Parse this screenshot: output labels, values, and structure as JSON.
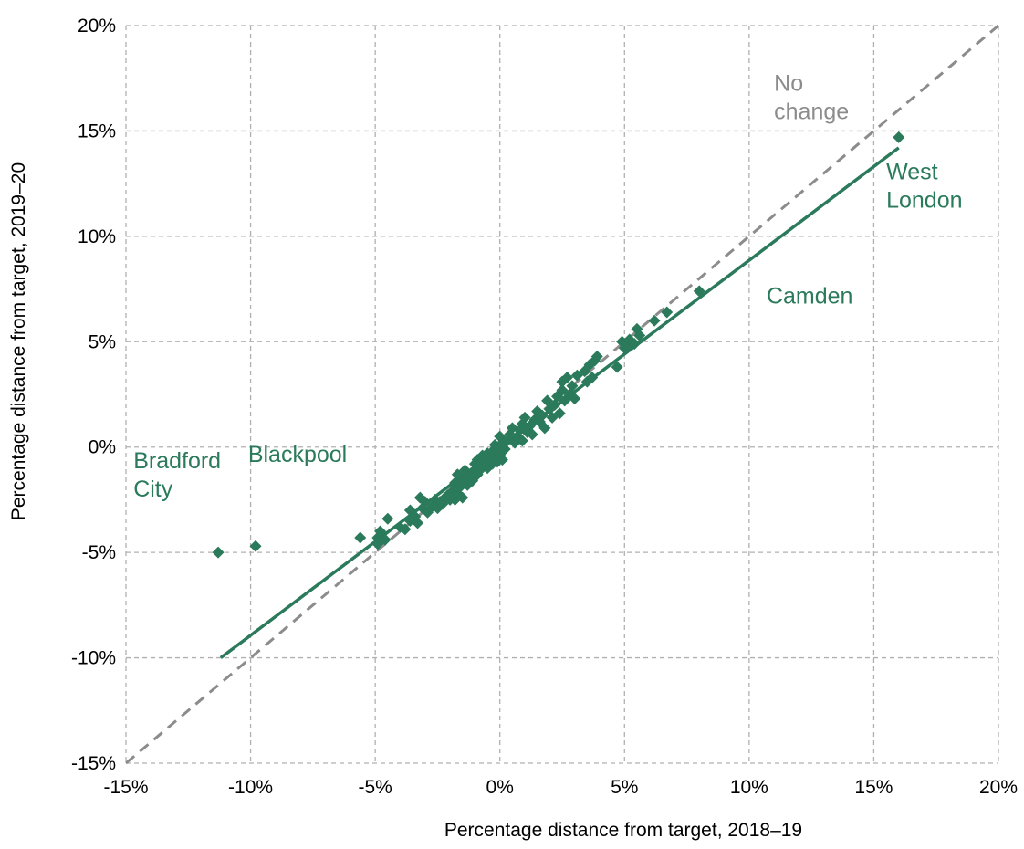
{
  "chart_data": {
    "type": "scatter",
    "xlabel": "Percentage distance from target, 2018–19",
    "ylabel": "Percentage distance from target, 2019–20",
    "xlim": [
      -15,
      20
    ],
    "ylim": [
      -15,
      20
    ],
    "grid": true,
    "x_tick_values": [
      -15,
      -10,
      -5,
      0,
      5,
      10,
      15,
      20
    ],
    "x_tick_labels": [
      "-15%",
      "-10%",
      "-5%",
      "0%",
      "5%",
      "10%",
      "15%",
      "20%"
    ],
    "y_tick_values": [
      -15,
      -10,
      -5,
      0,
      5,
      10,
      15,
      20
    ],
    "y_tick_labels": [
      "-15%",
      "-10%",
      "-5%",
      "0%",
      "5%",
      "10%",
      "15%",
      "20%"
    ],
    "colors": {
      "points": "#2a7a5b",
      "trend": "#2a7a5b",
      "no_change": "#8c8c8c",
      "grid": "#b0b0b0"
    },
    "points": [
      [
        -11.3,
        -5.0
      ],
      [
        -9.8,
        -4.7
      ],
      [
        16.0,
        14.7
      ],
      [
        8.0,
        7.4
      ],
      [
        -5.6,
        -4.3
      ],
      [
        -4.9,
        -4.3
      ],
      [
        -4.9,
        -4.6
      ],
      [
        -4.6,
        -4.4
      ],
      [
        -4.8,
        -4.0
      ],
      [
        -4.5,
        -3.4
      ],
      [
        -4.0,
        -3.8
      ],
      [
        -3.8,
        -3.9
      ],
      [
        -3.6,
        -3.5
      ],
      [
        -3.6,
        -3.0
      ],
      [
        -3.4,
        -3.3
      ],
      [
        -3.3,
        -3.6
      ],
      [
        -3.2,
        -2.4
      ],
      [
        -3.1,
        -2.9
      ],
      [
        -3.0,
        -2.6
      ],
      [
        -2.9,
        -3.1
      ],
      [
        -2.7,
        -2.8
      ],
      [
        -2.6,
        -2.5
      ],
      [
        -2.5,
        -2.9
      ],
      [
        -2.4,
        -2.6
      ],
      [
        -2.3,
        -2.7
      ],
      [
        -2.2,
        -2.4
      ],
      [
        -2.1,
        -2.3
      ],
      [
        -2.0,
        -2.5
      ],
      [
        -1.9,
        -2.1
      ],
      [
        -1.8,
        -1.7
      ],
      [
        -1.8,
        -2.5
      ],
      [
        -1.7,
        -2.2
      ],
      [
        -1.7,
        -1.3
      ],
      [
        -1.6,
        -1.9
      ],
      [
        -1.5,
        -1.6
      ],
      [
        -1.5,
        -2.4
      ],
      [
        -1.4,
        -1.1
      ],
      [
        -1.3,
        -1.8
      ],
      [
        -1.3,
        -1.5
      ],
      [
        -1.2,
        -1.4
      ],
      [
        -1.1,
        -1.6
      ],
      [
        -1.0,
        -1.2
      ],
      [
        -1.0,
        -0.8
      ],
      [
        -0.9,
        -0.6
      ],
      [
        -0.9,
        -1.3
      ],
      [
        -0.8,
        -1.1
      ],
      [
        -0.7,
        -0.4
      ],
      [
        -0.7,
        -0.9
      ],
      [
        -0.6,
        -0.7
      ],
      [
        -0.5,
        -0.3
      ],
      [
        -0.5,
        -1.0
      ],
      [
        -0.4,
        -0.6
      ],
      [
        -0.3,
        -0.8
      ],
      [
        -0.3,
        -0.2
      ],
      [
        -0.2,
        -0.5
      ],
      [
        -0.2,
        0.1
      ],
      [
        -0.1,
        -0.7
      ],
      [
        -0.1,
        -0.2
      ],
      [
        0.0,
        0.5
      ],
      [
        0.0,
        -0.4
      ],
      [
        0.1,
        0.2
      ],
      [
        0.1,
        -0.6
      ],
      [
        0.2,
        -0.1
      ],
      [
        0.3,
        0.3
      ],
      [
        0.4,
        0.6
      ],
      [
        0.5,
        0.9
      ],
      [
        0.6,
        0.2
      ],
      [
        0.7,
        0.5
      ],
      [
        0.8,
        0.8
      ],
      [
        0.9,
        1.1
      ],
      [
        0.9,
        0.3
      ],
      [
        1.0,
        1.4
      ],
      [
        1.1,
        0.7
      ],
      [
        1.2,
        1.0
      ],
      [
        1.3,
        0.6
      ],
      [
        1.4,
        1.3
      ],
      [
        1.5,
        1.7
      ],
      [
        1.6,
        1.2
      ],
      [
        1.7,
        1.5
      ],
      [
        1.8,
        0.9
      ],
      [
        1.9,
        2.2
      ],
      [
        2.0,
        1.8
      ],
      [
        2.1,
        1.4
      ],
      [
        2.2,
        2.0
      ],
      [
        2.3,
        2.4
      ],
      [
        2.4,
        1.6
      ],
      [
        2.5,
        2.7
      ],
      [
        2.5,
        3.1
      ],
      [
        2.6,
        2.2
      ],
      [
        2.7,
        3.3
      ],
      [
        2.8,
        2.5
      ],
      [
        2.9,
        2.9
      ],
      [
        3.0,
        2.3
      ],
      [
        3.1,
        3.4
      ],
      [
        3.4,
        3.6
      ],
      [
        3.5,
        3.1
      ],
      [
        3.6,
        3.9
      ],
      [
        3.7,
        3.3
      ],
      [
        3.8,
        4.1
      ],
      [
        3.9,
        4.3
      ],
      [
        4.7,
        3.8
      ],
      [
        4.9,
        5.0
      ],
      [
        5.0,
        4.7
      ],
      [
        5.1,
        4.8
      ],
      [
        5.2,
        5.1
      ],
      [
        5.4,
        4.9
      ],
      [
        5.5,
        5.6
      ],
      [
        5.6,
        5.3
      ],
      [
        6.2,
        6.0
      ],
      [
        6.7,
        6.4
      ]
    ],
    "trendline": {
      "x": [
        -11.2,
        16.0
      ],
      "y": [
        -10.0,
        14.2
      ]
    },
    "reference_line": {
      "label": "No change",
      "x": [
        -15,
        20
      ],
      "y": [
        -15,
        20
      ]
    },
    "annotations": [
      {
        "text": "No change",
        "lines": [
          "No",
          "change"
        ],
        "x": 11,
        "y": 16.9,
        "anchor": "start",
        "color": "#8c8c8c"
      },
      {
        "text": "West London",
        "lines": [
          "West",
          "London"
        ],
        "x": 15.5,
        "y": 12.7,
        "anchor": "start",
        "color": "#2a7a5b"
      },
      {
        "text": "Camden",
        "lines": [
          "Camden"
        ],
        "x": 10.7,
        "y": 6.8,
        "anchor": "start",
        "color": "#2a7a5b"
      },
      {
        "text": "Bradford City",
        "lines": [
          "Bradford",
          "City"
        ],
        "x": -14.7,
        "y": -1.0,
        "anchor": "start",
        "color": "#2a7a5b"
      },
      {
        "text": "Blackpool",
        "lines": [
          "Blackpool"
        ],
        "x": -10.1,
        "y": -0.7,
        "anchor": "start",
        "color": "#2a7a5b"
      }
    ]
  }
}
